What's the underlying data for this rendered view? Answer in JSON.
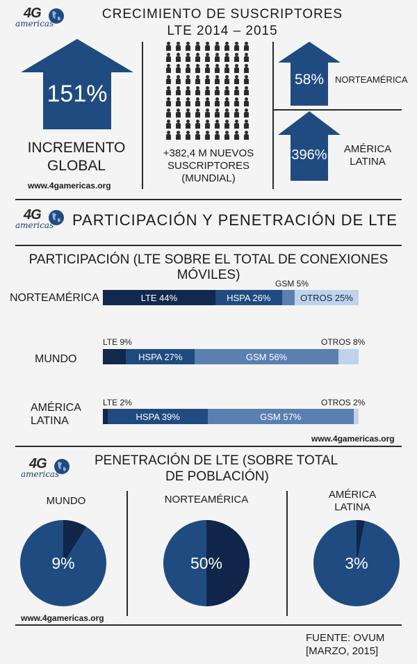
{
  "header": {
    "title_line1": "CRECIMIENTO DE SUSCRIPTORES",
    "title_line2": "LTE 2014 – 2015"
  },
  "logo": {
    "mark": "4G",
    "word": "americas"
  },
  "growth": {
    "global_value": "151%",
    "global_label_line1": "INCREMENTO",
    "global_label_line2": "GLOBAL",
    "url": "www.4gamericas.org",
    "new_subs_line1": "+382,4 M NUEVOS",
    "new_subs_line2": "SUSCRIPTORES",
    "new_subs_line3": "(MUNDIAL)",
    "north_america_value": "58%",
    "north_america_label": "NORTEAMÉRICA",
    "latam_value": "396%",
    "latam_label_line1": "AMÉRICA",
    "latam_label_line2": "LATINA"
  },
  "section2_title": "PARTICIPACIÓN Y PENETRACIÓN DE LTE",
  "share_title_line1": "PARTICIPACIÓN (LTE SOBRE EL TOTAL DE CONEXIONES",
  "share_title_line2": "MÓVILES)",
  "share_url": "www.4gamericas.org",
  "penetration_title_line1": "PENETRACIÓN DE LTE (SOBRE TOTAL",
  "penetration_title_line2": "DE POBLACIÓN)",
  "penetration_url": "www.4gamericas.org",
  "source_line1": "FUENTE: OVUM",
  "source_line2": "[MARZO, 2015]",
  "colors": {
    "lte": "#13284d",
    "hspa": "#1f4b80",
    "gsm": "#5a7fb0",
    "otros": "#c1d3ea",
    "arrow": "#1f4b80",
    "pie_main": "#1f4b80",
    "pie_slice": "#10264a"
  },
  "chart_data": [
    {
      "type": "bar",
      "orientation": "horizontal-stacked",
      "categories": [
        "NORTEAMÉRICA",
        "MUNDO",
        "AMÉRICA LATINA"
      ],
      "series": [
        {
          "name": "LTE",
          "values": [
            44,
            9,
            2
          ],
          "labels": [
            "LTE 44%",
            "LTE 9%",
            "LTE 2%"
          ]
        },
        {
          "name": "HSPA",
          "values": [
            26,
            27,
            39
          ],
          "labels": [
            "HSPA 26%",
            "HSPA 27%",
            "HSPA 39%"
          ]
        },
        {
          "name": "GSM",
          "values": [
            5,
            56,
            57
          ],
          "labels": [
            "GSM 5%",
            "GSM 56%",
            "GSM 57%"
          ]
        },
        {
          "name": "OTROS",
          "values": [
            25,
            8,
            2
          ],
          "labels": [
            "OTROS 25%",
            "OTROS 8%",
            "OTROS 2%"
          ]
        }
      ]
    },
    {
      "type": "pie",
      "slices": [
        {
          "region": "MUNDO",
          "value": 9,
          "label": "9%"
        },
        {
          "region": "NORTEAMÉRICA",
          "value": 50,
          "label": "50%"
        },
        {
          "region_line1": "AMÉRICA",
          "region_line2": "LATINA",
          "value": 3,
          "label": "3%"
        }
      ]
    }
  ]
}
